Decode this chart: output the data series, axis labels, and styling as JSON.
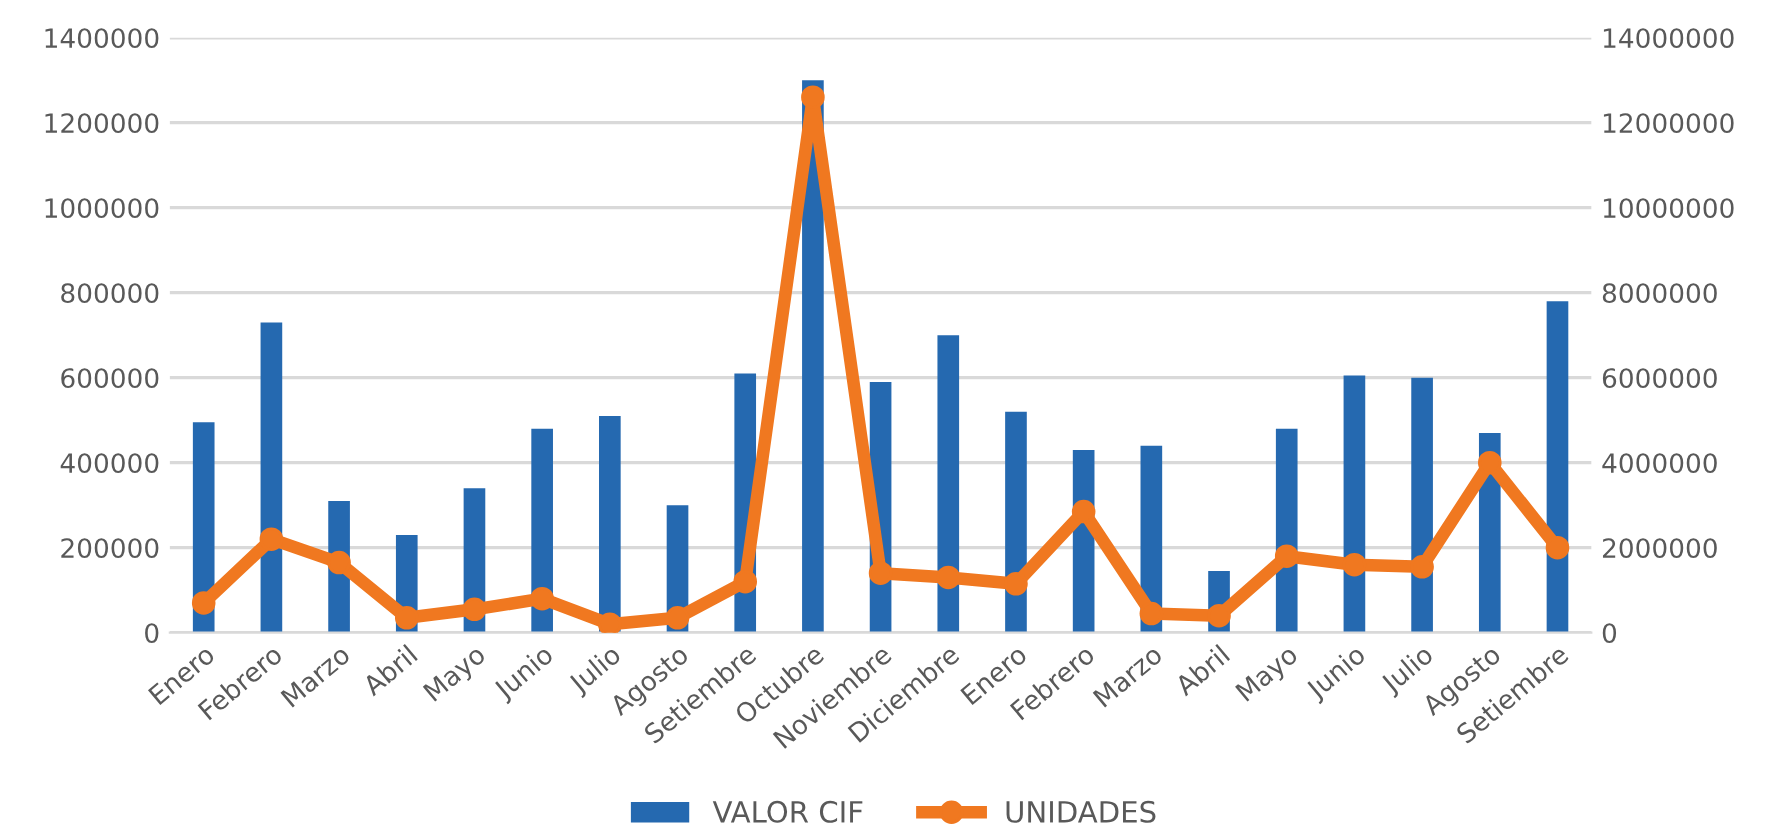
{
  "chart_data": {
    "type": "bar",
    "categories": [
      "Enero",
      "Febrero",
      "Marzo",
      "Abril",
      "Mayo",
      "Junio",
      "Julio",
      "Agosto",
      "Setiembre",
      "Octubre",
      "Noviembre",
      "Diciembre",
      "Enero",
      "Febrero",
      "Marzo",
      "Abril",
      "Mayo",
      "Junio",
      "Julio",
      "Agosto",
      "Setiembre"
    ],
    "series": [
      {
        "name": "VALOR CIF",
        "color": "#2569b0",
        "values": [
          495000,
          730000,
          310000,
          230000,
          340000,
          480000,
          510000,
          300000,
          610000,
          1300000,
          590000,
          700000,
          520000,
          430000,
          440000,
          145000,
          480000,
          605000,
          600000,
          470000,
          780000
        ]
      },
      {
        "name": "UNIDADES",
        "color": "#f07820",
        "type": "line",
        "axis": "y2",
        "marker": "circle",
        "values": [
          700000,
          2200000,
          1650000,
          350000,
          550000,
          800000,
          200000,
          350000,
          1200000,
          12600000,
          1400000,
          1300000,
          1150000,
          2850000,
          450000,
          400000,
          1800000,
          1600000,
          1550000,
          4000000,
          2000000
        ]
      }
    ],
    "ylim": [
      0,
      1400000
    ],
    "yticks": [
      0,
      200000,
      400000,
      600000,
      800000,
      1000000,
      1200000,
      1400000
    ],
    "y2lim": [
      0,
      14000000
    ],
    "y2ticks": [
      0,
      2000000,
      4000000,
      6000000,
      8000000,
      10000000,
      12000000,
      14000000
    ],
    "grid": "y",
    "legend": "bottom"
  }
}
